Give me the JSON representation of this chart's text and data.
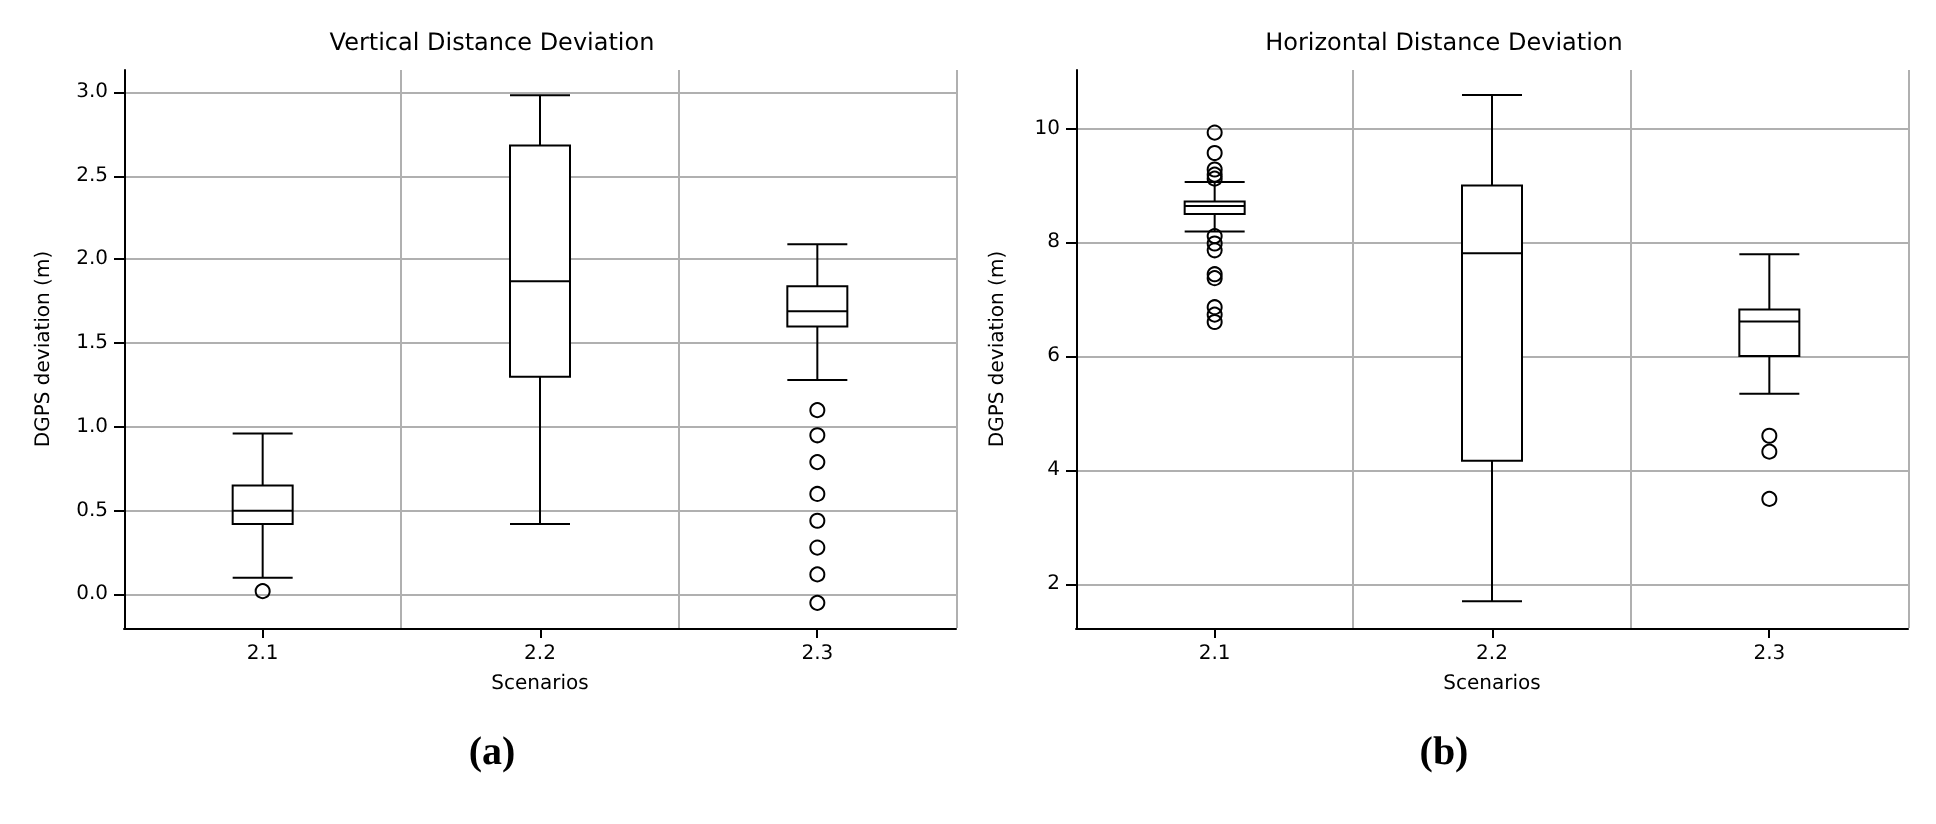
{
  "chart_data": [
    {
      "type": "box",
      "title": "Vertical Distance Deviation",
      "xlabel": "Scenarios",
      "ylabel": "DGPS deviation (m)",
      "categories": [
        "2.1",
        "2.2",
        "2.3"
      ],
      "boxes": [
        {
          "low": 0.1,
          "q1": 0.42,
          "median": 0.5,
          "q3": 0.65,
          "high": 0.96,
          "outliers": [
            0.02
          ]
        },
        {
          "low": 0.42,
          "q1": 1.3,
          "median": 1.87,
          "q3": 2.68,
          "high": 2.98
        },
        {
          "low": 1.28,
          "q1": 1.6,
          "median": 1.69,
          "q3": 1.84,
          "high": 2.09,
          "outliers": [
            1.1,
            0.95,
            0.79,
            0.6,
            0.44,
            0.28,
            0.12,
            -0.05
          ]
        }
      ],
      "ylim": [
        -0.2,
        3.13
      ],
      "yticks": [
        {
          "value": 0,
          "label": "0.0"
        },
        0.5,
        {
          "value": 1,
          "label": "1.0"
        },
        1.5,
        {
          "value": 2,
          "label": "2.0"
        },
        2.5,
        {
          "value": 3,
          "label": "3.0"
        }
      ],
      "grid": true,
      "color": "#000000",
      "annotations": [
        "(a)"
      ]
    },
    {
      "type": "box",
      "title": "Horizontal Distance Deviation",
      "xlabel": "Scenarios",
      "ylabel": "DGPS deviation (m)",
      "categories": [
        "2.1",
        "2.2",
        "2.3"
      ],
      "boxes": [
        {
          "low": 8.19,
          "q1": 8.5,
          "median": 8.64,
          "q3": 8.72,
          "high": 9.06,
          "outliers": [
            9.93,
            9.57,
            9.28,
            9.19,
            9.12,
            8.11,
            7.98,
            7.86,
            7.44,
            7.37,
            6.86,
            6.73,
            6.6
          ]
        },
        {
          "low": 1.69,
          "q1": 4.16,
          "median": 7.81,
          "q3": 9.0,
          "high": 10.59
        },
        {
          "low": 5.34,
          "q1": 6.0,
          "median": 6.61,
          "q3": 6.82,
          "high": 7.79,
          "outliers": [
            4.6,
            4.32,
            3.49
          ]
        }
      ],
      "ylim": [
        1.22,
        11.03
      ],
      "yticks": [
        2,
        4,
        6,
        8,
        10
      ],
      "grid": true,
      "color": "#000000",
      "annotations": [
        "(b)"
      ]
    }
  ]
}
